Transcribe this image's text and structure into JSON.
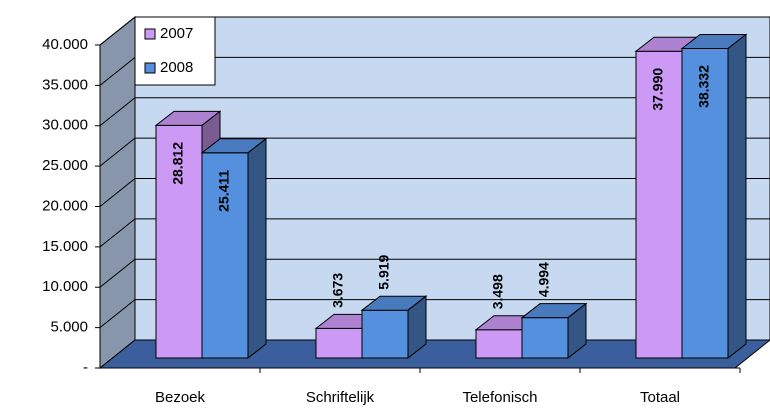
{
  "chart_data": {
    "type": "bar3d",
    "categories": [
      "Bezoek",
      "Schriftelijk",
      "Telefonisch",
      "Totaal"
    ],
    "series": [
      {
        "name": "2007",
        "color": "#cc99f5",
        "values": [
          28812,
          3673,
          3498,
          37990
        ],
        "value_labels": [
          "28.812",
          "3.673",
          "3.498",
          "37.990"
        ]
      },
      {
        "name": "2008",
        "color": "#5590de",
        "values": [
          25411,
          5919,
          4994,
          38332
        ],
        "value_labels": [
          "25.411",
          "5.919",
          "4.994",
          "38.332"
        ]
      }
    ],
    "ylim": [
      0,
      40000
    ],
    "yticks": [
      {
        "value": 0,
        "label": "-"
      },
      {
        "value": 5000,
        "label": "5.000"
      },
      {
        "value": 10000,
        "label": "10.000"
      },
      {
        "value": 15000,
        "label": "15.000"
      },
      {
        "value": 20000,
        "label": "20.000"
      },
      {
        "value": 25000,
        "label": "25.000"
      },
      {
        "value": 30000,
        "label": "30.000"
      },
      {
        "value": 35000,
        "label": "35.000"
      },
      {
        "value": 40000,
        "label": "40.000"
      }
    ],
    "grid": true,
    "legend": "top-left"
  }
}
